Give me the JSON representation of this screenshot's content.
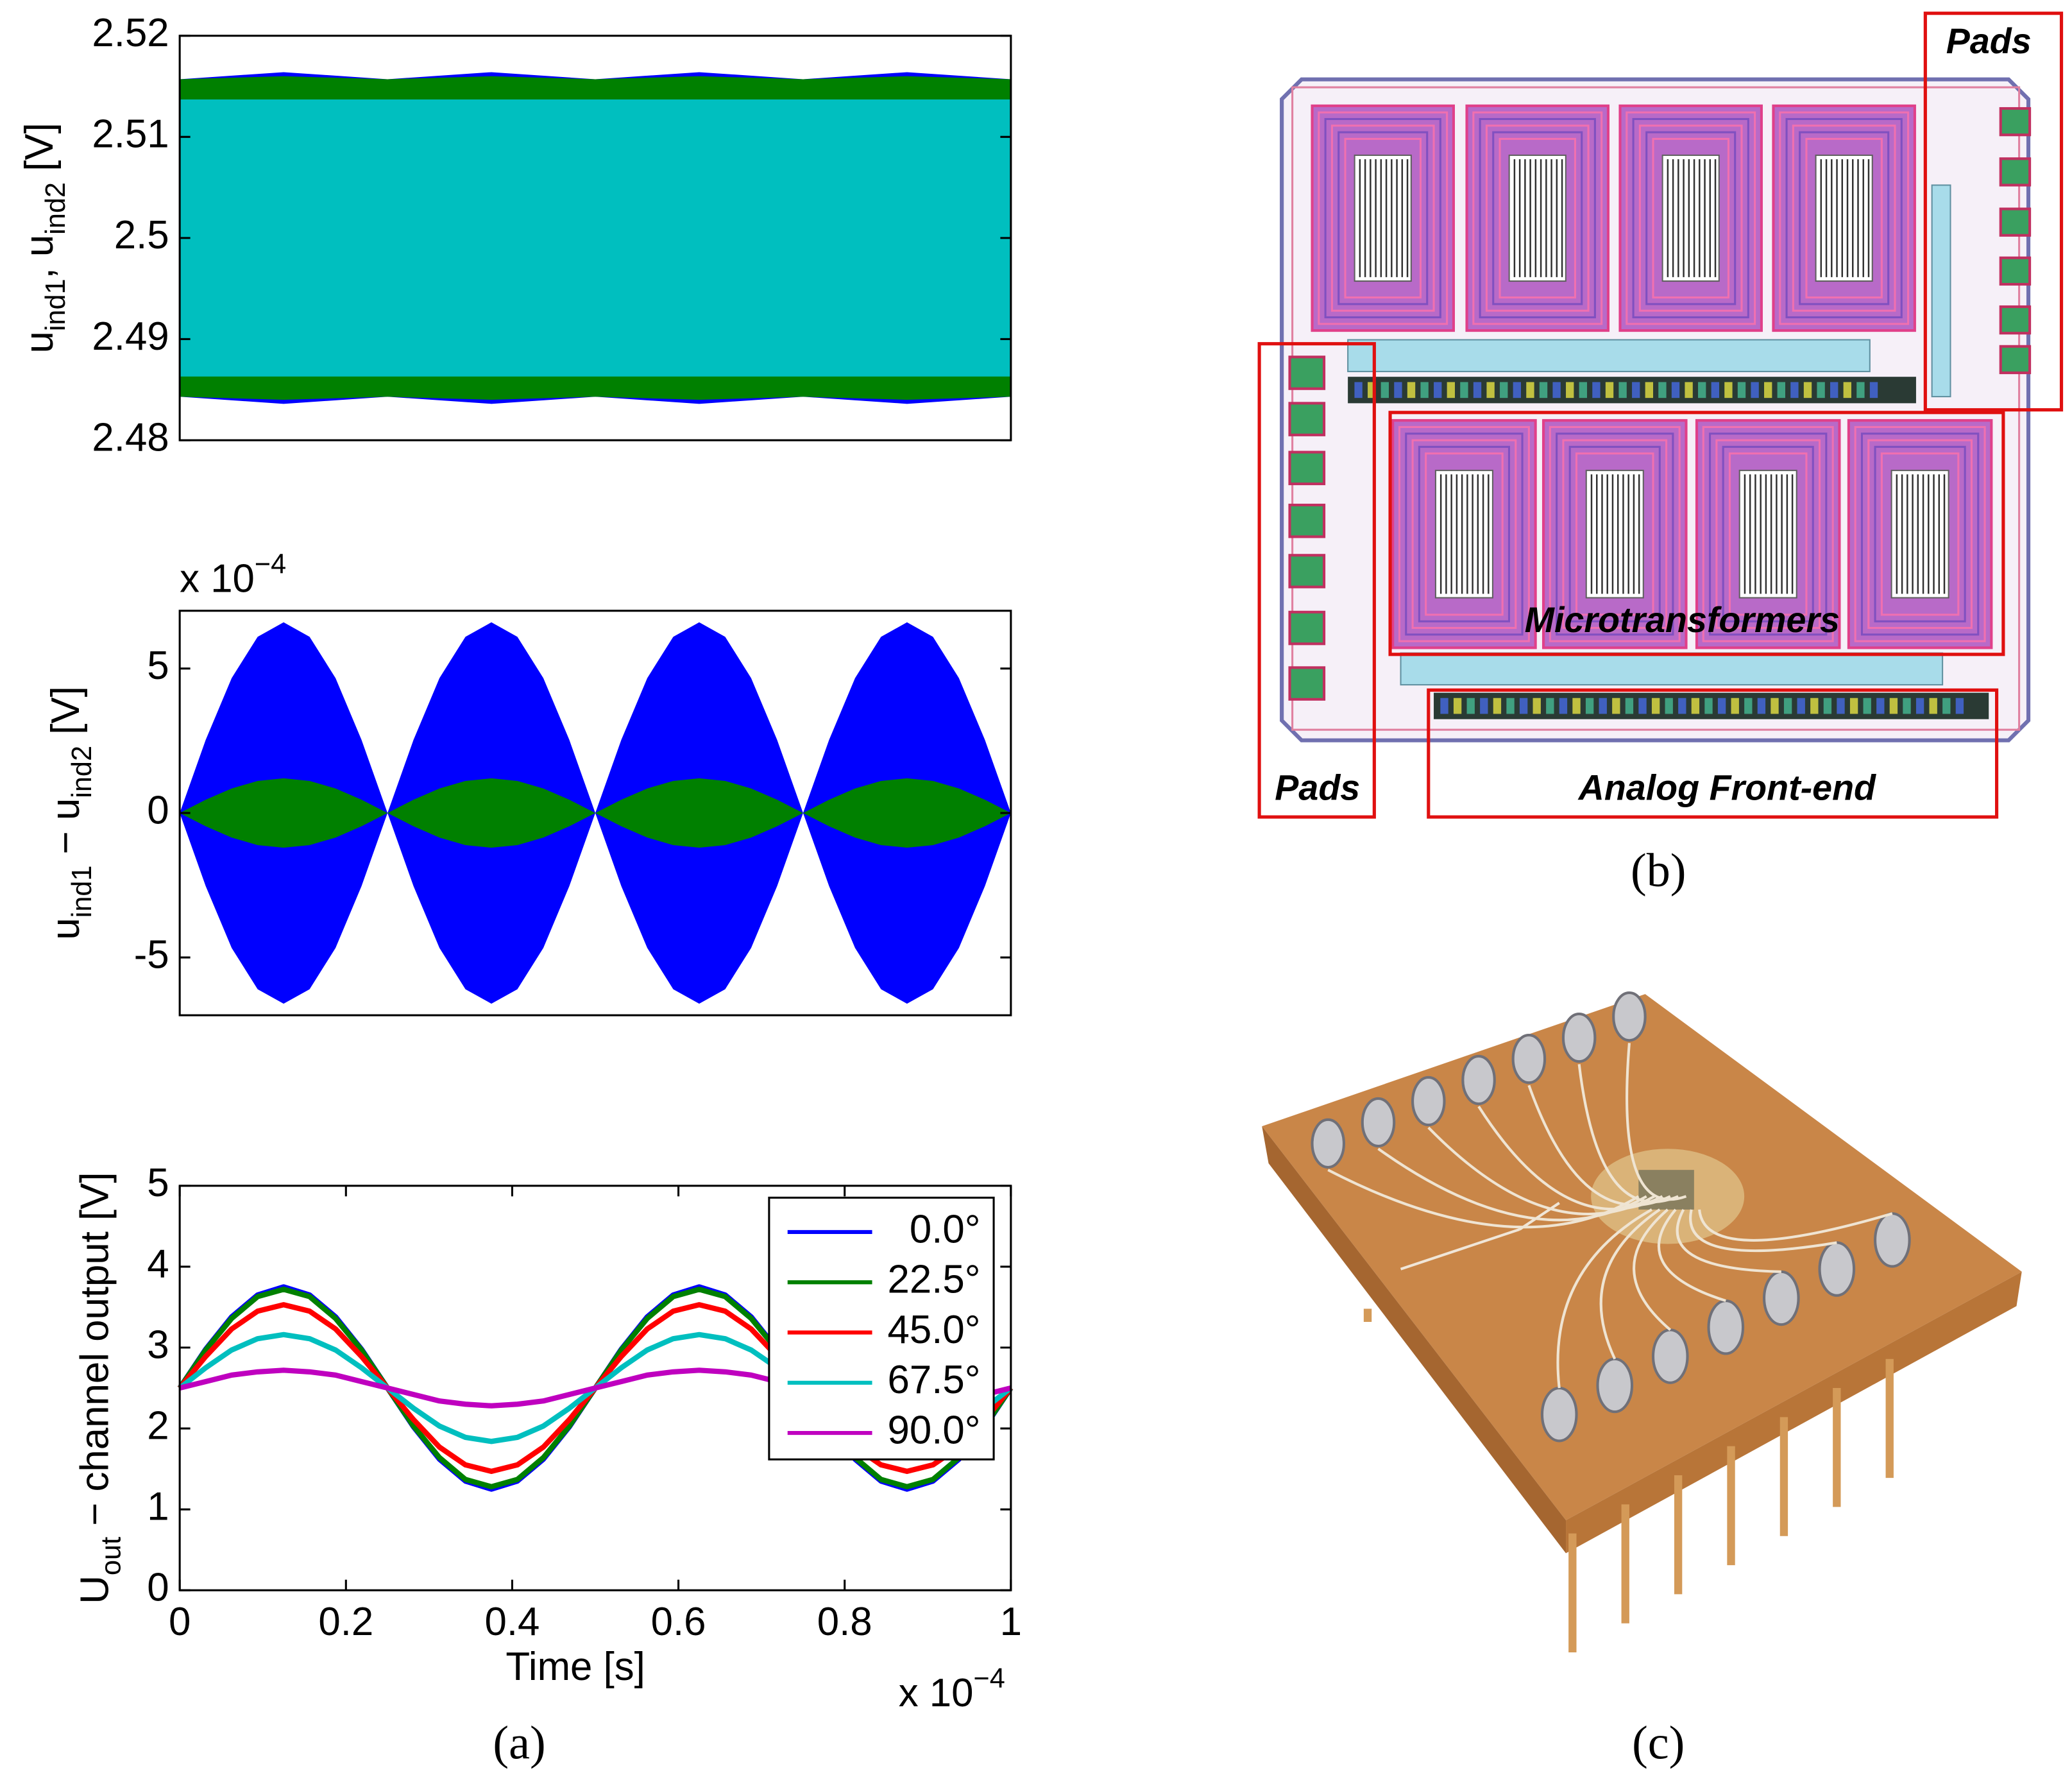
{
  "chart_data": [
    {
      "type": "band",
      "ylabel": [
        {
          "text": "u"
        },
        {
          "text": "ind1",
          "sub": true
        },
        {
          "text": ", u"
        },
        {
          "text": "ind2",
          "sub": true
        },
        {
          "text": " [V]"
        }
      ],
      "x": [
        0,
        0.125,
        0.25,
        0.375,
        0.5,
        0.625,
        0.75,
        0.875,
        1
      ],
      "xlim": [
        0,
        1
      ],
      "ylim": [
        2.48,
        2.52
      ],
      "yticks": [
        2.48,
        2.49,
        2.5,
        2.51,
        2.52
      ],
      "series": [
        {
          "color": "#0000ff",
          "upper": [
            2.5157,
            2.5164,
            2.5157,
            2.5164,
            2.5157,
            2.5164,
            2.5157,
            2.5164,
            2.5157
          ],
          "lower": [
            2.4843,
            2.4836,
            2.4843,
            2.4836,
            2.4843,
            2.4836,
            2.4843,
            2.4836,
            2.4843
          ]
        },
        {
          "color": "#008000",
          "upper": [
            2.5157,
            2.516,
            2.5157,
            2.516,
            2.5157,
            2.516,
            2.5157,
            2.516,
            2.5157
          ],
          "lower": [
            2.4843,
            2.484,
            2.4843,
            2.484,
            2.4843,
            2.484,
            2.4843,
            2.484,
            2.4843
          ]
        },
        {
          "color": "#00bfbf",
          "upper": [
            2.5137,
            2.5137,
            2.5137,
            2.5137,
            2.5137,
            2.5137,
            2.5137,
            2.5137,
            2.5137
          ],
          "lower": [
            2.4863,
            2.4863,
            2.4863,
            2.4863,
            2.4863,
            2.4863,
            2.4863,
            2.4863,
            2.4863
          ]
        }
      ]
    },
    {
      "type": "band",
      "multiplier": [
        {
          "text": "x 10"
        },
        {
          "text": "−4",
          "sup": true
        }
      ],
      "ylabel": [
        {
          "text": "u"
        },
        {
          "text": "ind1",
          "sub": true
        },
        {
          "text": " − u"
        },
        {
          "text": "ind2",
          "sub": true
        },
        {
          "text": " [V]"
        }
      ],
      "x": [
        0,
        0.03125,
        0.0625,
        0.09375,
        0.125,
        0.15625,
        0.1875,
        0.21875,
        0.25,
        0.28125,
        0.3125,
        0.34375,
        0.375,
        0.40625,
        0.4375,
        0.46875,
        0.5,
        0.53125,
        0.5625,
        0.59375,
        0.625,
        0.65625,
        0.6875,
        0.71875,
        0.75,
        0.78125,
        0.8125,
        0.84375,
        0.875,
        0.90625,
        0.9375,
        0.96875,
        1
      ],
      "xlim": [
        0,
        1
      ],
      "ylim": [
        -7,
        7
      ],
      "yticks": [
        -5,
        0,
        5
      ],
      "series": [
        {
          "color": "#0000ff",
          "upper": [
            0,
            2.53,
            4.67,
            6.1,
            6.6,
            6.1,
            4.67,
            2.53,
            0,
            2.53,
            4.67,
            6.1,
            6.6,
            6.1,
            4.67,
            2.53,
            0,
            2.53,
            4.67,
            6.1,
            6.6,
            6.1,
            4.67,
            2.53,
            0,
            2.53,
            4.67,
            6.1,
            6.6,
            6.1,
            4.67,
            2.53,
            0
          ],
          "lower": [
            0,
            -2.53,
            -4.67,
            -6.1,
            -6.6,
            -6.1,
            -4.67,
            -2.53,
            0,
            -2.53,
            -4.67,
            -6.1,
            -6.6,
            -6.1,
            -4.67,
            -2.53,
            0,
            -2.53,
            -4.67,
            -6.1,
            -6.6,
            -6.1,
            -4.67,
            -2.53,
            0,
            -2.53,
            -4.67,
            -6.1,
            -6.6,
            -6.1,
            -4.67,
            -2.53,
            0
          ]
        },
        {
          "color": "#008000",
          "upper": [
            0,
            0.46,
            0.85,
            1.11,
            1.2,
            1.11,
            0.85,
            0.46,
            0,
            0.46,
            0.85,
            1.11,
            1.2,
            1.11,
            0.85,
            0.46,
            0,
            0.46,
            0.85,
            1.11,
            1.2,
            1.11,
            0.85,
            0.46,
            0,
            0.46,
            0.85,
            1.11,
            1.2,
            1.11,
            0.85,
            0.46,
            0
          ],
          "lower": [
            0,
            -0.46,
            -0.85,
            -1.11,
            -1.2,
            -1.11,
            -0.85,
            -0.46,
            0,
            -0.46,
            -0.85,
            -1.11,
            -1.2,
            -1.11,
            -0.85,
            -0.46,
            0,
            -0.46,
            -0.85,
            -1.11,
            -1.2,
            -1.11,
            -0.85,
            -0.46,
            0,
            -0.46,
            -0.85,
            -1.11,
            -1.2,
            -1.11,
            -0.85,
            -0.46,
            0
          ]
        }
      ]
    },
    {
      "type": "line",
      "ylabel": [
        {
          "text": "U"
        },
        {
          "text": "out",
          "sub": true
        },
        {
          "text": " − channel output [V]"
        }
      ],
      "xlabel": "Time [s]",
      "multiplier": [
        {
          "text": "x 10"
        },
        {
          "text": "−4",
          "sup": true
        }
      ],
      "x": [
        0,
        0.03125,
        0.0625,
        0.09375,
        0.125,
        0.15625,
        0.1875,
        0.21875,
        0.25,
        0.28125,
        0.3125,
        0.34375,
        0.375,
        0.40625,
        0.4375,
        0.46875,
        0.5,
        0.53125,
        0.5625,
        0.59375,
        0.625,
        0.65625,
        0.6875,
        0.71875,
        0.75,
        0.78125,
        0.8125,
        0.84375,
        0.875,
        0.90625,
        0.9375,
        0.96875,
        1
      ],
      "xlim": [
        0,
        1
      ],
      "xticks": [
        0,
        0.2,
        0.4,
        0.6,
        0.8,
        1
      ],
      "ylim": [
        0,
        5
      ],
      "yticks": [
        0,
        1,
        2,
        3,
        4,
        5
      ],
      "legend": "upper right",
      "series": [
        {
          "name": "0.0°",
          "color": "#0000ff",
          "values": [
            2.5,
            2.98,
            3.38,
            3.65,
            3.75,
            3.65,
            3.38,
            2.98,
            2.5,
            2.02,
            1.62,
            1.35,
            1.25,
            1.35,
            1.62,
            2.02,
            2.5,
            2.98,
            3.38,
            3.65,
            3.75,
            3.65,
            3.38,
            2.98,
            2.5,
            2.02,
            1.62,
            1.35,
            1.25,
            1.35,
            1.62,
            2.02,
            2.5
          ]
        },
        {
          "name": "22.5°",
          "color": "#008000",
          "values": [
            2.5,
            2.97,
            3.36,
            3.63,
            3.72,
            3.63,
            3.36,
            2.97,
            2.5,
            2.03,
            1.64,
            1.37,
            1.28,
            1.37,
            1.64,
            2.03,
            2.5,
            2.97,
            3.36,
            3.63,
            3.72,
            3.63,
            3.36,
            2.97,
            2.5,
            2.03,
            1.64,
            1.37,
            1.28,
            1.37,
            1.64,
            2.03,
            2.5
          ]
        },
        {
          "name": "45.0°",
          "color": "#ff0000",
          "values": [
            2.5,
            2.89,
            3.23,
            3.45,
            3.53,
            3.45,
            3.23,
            2.89,
            2.5,
            2.11,
            1.77,
            1.55,
            1.47,
            1.55,
            1.77,
            2.11,
            2.5,
            2.89,
            3.23,
            3.45,
            3.53,
            3.45,
            3.23,
            2.89,
            2.5,
            2.11,
            1.77,
            1.55,
            1.47,
            1.55,
            1.77,
            2.11,
            2.5
          ]
        },
        {
          "name": "67.5°",
          "color": "#00bfbf",
          "values": [
            2.5,
            2.75,
            2.97,
            3.11,
            3.16,
            3.11,
            2.97,
            2.75,
            2.5,
            2.25,
            2.03,
            1.89,
            1.84,
            1.89,
            2.03,
            2.25,
            2.5,
            2.75,
            2.97,
            3.11,
            3.16,
            3.11,
            2.97,
            2.75,
            2.5,
            2.25,
            2.03,
            1.89,
            1.84,
            1.89,
            2.03,
            2.25,
            2.5
          ]
        },
        {
          "name": "90.0°",
          "color": "#bf00bf",
          "values": [
            2.5,
            2.58,
            2.66,
            2.7,
            2.72,
            2.7,
            2.66,
            2.58,
            2.5,
            2.42,
            2.34,
            2.3,
            2.28,
            2.3,
            2.34,
            2.42,
            2.5,
            2.58,
            2.66,
            2.7,
            2.72,
            2.7,
            2.66,
            2.58,
            2.5,
            2.42,
            2.34,
            2.3,
            2.28,
            2.3,
            2.34,
            2.42,
            2.5
          ]
        }
      ]
    }
  ],
  "panels": {
    "a": "(a)",
    "b": "(b)",
    "c": "(c)"
  },
  "layout": {
    "labels": [
      "Pads",
      "Pads",
      "Microtransformers",
      "Analog Front-end"
    ]
  }
}
